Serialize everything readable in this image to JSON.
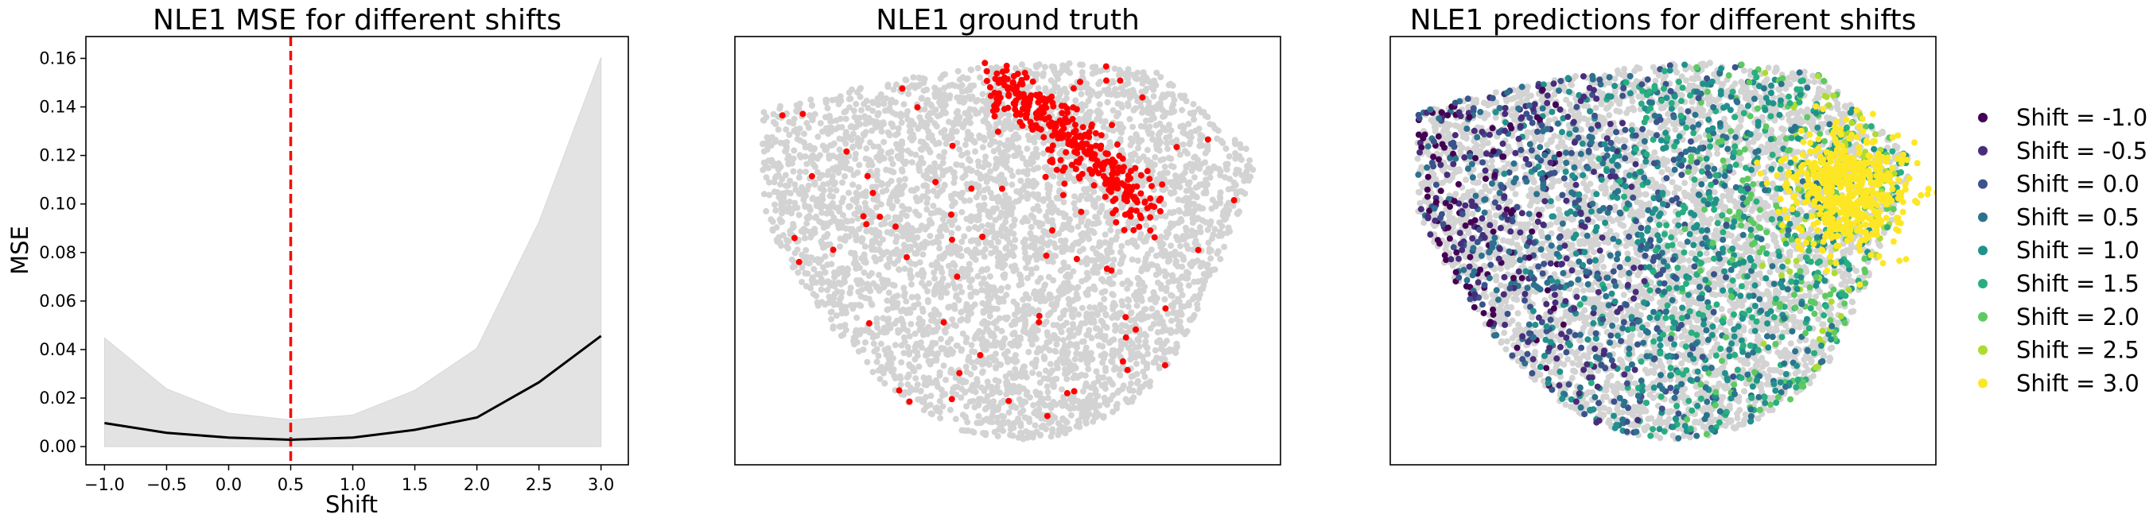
{
  "chart_data": [
    {
      "type": "line",
      "title": "NLE1 MSE for different shifts",
      "xlabel": "Shift",
      "ylabel": "MSE",
      "x": [
        -1.0,
        -0.5,
        0.0,
        0.5,
        1.0,
        1.5,
        2.0,
        2.5,
        3.0
      ],
      "xticks": [
        "−1.0",
        "−0.5",
        "0.0",
        "0.5",
        "1.0",
        "1.5",
        "2.0",
        "2.5",
        "3.0"
      ],
      "yticks": [
        "0.00",
        "0.02",
        "0.04",
        "0.06",
        "0.08",
        "0.10",
        "0.12",
        "0.14",
        "0.16"
      ],
      "xlim": [
        -1.15,
        3.22
      ],
      "ylim": [
        -0.0075,
        0.169
      ],
      "series": [
        {
          "values": [
            0.0097,
            0.0057,
            0.0037,
            0.0028,
            0.0037,
            0.0069,
            0.012,
            0.0265,
            0.0456
          ],
          "color": "#000000"
        }
      ],
      "band": {
        "lower": [
          0,
          0,
          0,
          0,
          0,
          0,
          0,
          0,
          0
        ],
        "upper": [
          0.0448,
          0.0238,
          0.0138,
          0.011,
          0.013,
          0.0232,
          0.0405,
          0.0926,
          0.1605
        ],
        "color": "#e3e3e3"
      },
      "vline": {
        "x": 0.5,
        "color": "#ff0000",
        "style": "dashed"
      },
      "grid": false
    },
    {
      "type": "scatter",
      "title": "NLE1 ground truth",
      "background_color": "#d3d3d3",
      "highlight_color": "#ff0000",
      "axes": false
    },
    {
      "type": "scatter",
      "title": "NLE1 predictions for different shifts",
      "background_color": "#d3d3d3",
      "axes": false,
      "legend_position": "right",
      "legend": [
        {
          "label": "Shift = -1.0",
          "color": "#440154"
        },
        {
          "label": "Shift = -0.5",
          "color": "#472d7b"
        },
        {
          "label": "Shift = 0.0",
          "color": "#3b528b"
        },
        {
          "label": "Shift = 0.5",
          "color": "#2c728e"
        },
        {
          "label": "Shift = 1.0",
          "color": "#21918c"
        },
        {
          "label": "Shift = 1.5",
          "color": "#28ae80"
        },
        {
          "label": "Shift = 2.0",
          "color": "#5ec962"
        },
        {
          "label": "Shift = 2.5",
          "color": "#addc30"
        },
        {
          "label": "Shift = 3.0",
          "color": "#fde725"
        }
      ]
    }
  ]
}
